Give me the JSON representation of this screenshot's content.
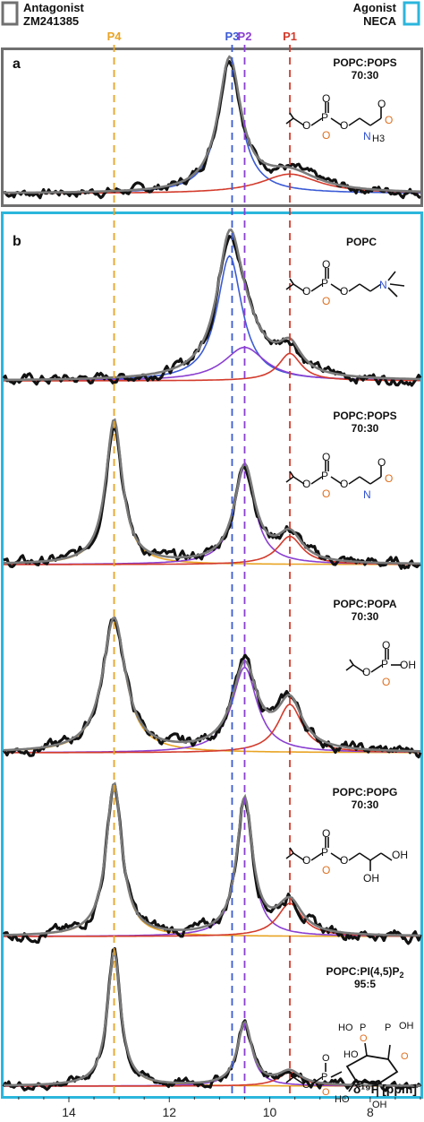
{
  "legend": {
    "antagonist": {
      "label_line1": "Antagonist",
      "label_line2": "ZM241385",
      "color": "#707070"
    },
    "agonist": {
      "label_line1": "Agonist",
      "label_line2": "NECA",
      "color": "#2bb6dc"
    }
  },
  "peak_colors": {
    "P1": "#d33b2c",
    "P2": "#8a3fd1",
    "P3": "#3b5bd6",
    "P4": "#e8a424",
    "fit": "#7a7a7a",
    "data": "#111111"
  },
  "chart_data": {
    "type": "line",
    "xlabel": "δ¹⁹F [ppm]",
    "x_ticks": [
      14,
      12,
      10,
      8
    ],
    "xlim": [
      15.3,
      7.0
    ],
    "reversed_x": true,
    "reference_lines": [
      {
        "name": "P4",
        "x": 13.1,
        "color": "#e8a424"
      },
      {
        "name": "P3",
        "x": 10.75,
        "color": "#3b5bd6"
      },
      {
        "name": "P2",
        "x": 10.5,
        "color": "#8a3fd1"
      },
      {
        "name": "P1",
        "x": 9.6,
        "color": "#d33b2c"
      }
    ],
    "panels": [
      {
        "label": "a",
        "title_line1": "POPC:POPS",
        "title_line2": "70:30",
        "frame": "antagonist",
        "components": [
          {
            "name": "P3",
            "center": 10.8,
            "height": 0.95,
            "width": 0.55
          },
          {
            "name": "P1",
            "center": 9.6,
            "height": 0.14,
            "width": 1.4
          }
        ]
      },
      {
        "label": "b",
        "title_line1": "POPC",
        "title_line2": "",
        "frame": "agonist",
        "components": [
          {
            "name": "P3",
            "center": 10.8,
            "height": 0.82,
            "width": 0.6
          },
          {
            "name": "P2",
            "center": 10.5,
            "height": 0.22,
            "width": 1.0
          },
          {
            "name": "P1",
            "center": 9.6,
            "height": 0.18,
            "width": 0.55
          }
        ]
      },
      {
        "label": "",
        "title_line1": "POPC:POPS",
        "title_line2": "70:30",
        "frame": "agonist",
        "components": [
          {
            "name": "P4",
            "center": 13.1,
            "height": 0.92,
            "width": 0.4
          },
          {
            "name": "P2",
            "center": 10.5,
            "height": 0.62,
            "width": 0.5
          },
          {
            "name": "P1",
            "center": 9.6,
            "height": 0.18,
            "width": 0.6
          }
        ]
      },
      {
        "label": "",
        "title_line1": "POPC:POPA",
        "title_line2": "70:30",
        "frame": "agonist",
        "components": [
          {
            "name": "P4",
            "center": 13.1,
            "height": 0.83,
            "width": 0.55
          },
          {
            "name": "P2",
            "center": 10.5,
            "height": 0.53,
            "width": 0.6
          },
          {
            "name": "P1",
            "center": 9.6,
            "height": 0.3,
            "width": 0.6
          }
        ]
      },
      {
        "label": "",
        "title_line1": "POPC:POPG",
        "title_line2": "70:30",
        "frame": "agonist",
        "components": [
          {
            "name": "P4",
            "center": 13.1,
            "height": 0.92,
            "width": 0.38
          },
          {
            "name": "P2",
            "center": 10.5,
            "height": 0.82,
            "width": 0.38
          },
          {
            "name": "P1",
            "center": 9.6,
            "height": 0.2,
            "width": 0.6
          }
        ]
      },
      {
        "label": "",
        "title_line1": "POPC:PI(4,5)P",
        "title_sub": "2",
        "title_line2": "95:5",
        "frame": "agonist",
        "components": [
          {
            "name": "P4",
            "center": 13.1,
            "height": 0.97,
            "width": 0.32
          },
          {
            "name": "P2",
            "center": 10.5,
            "height": 0.45,
            "width": 0.35
          },
          {
            "name": "P1",
            "center": 9.6,
            "height": 0.1,
            "width": 0.55
          }
        ]
      }
    ]
  }
}
